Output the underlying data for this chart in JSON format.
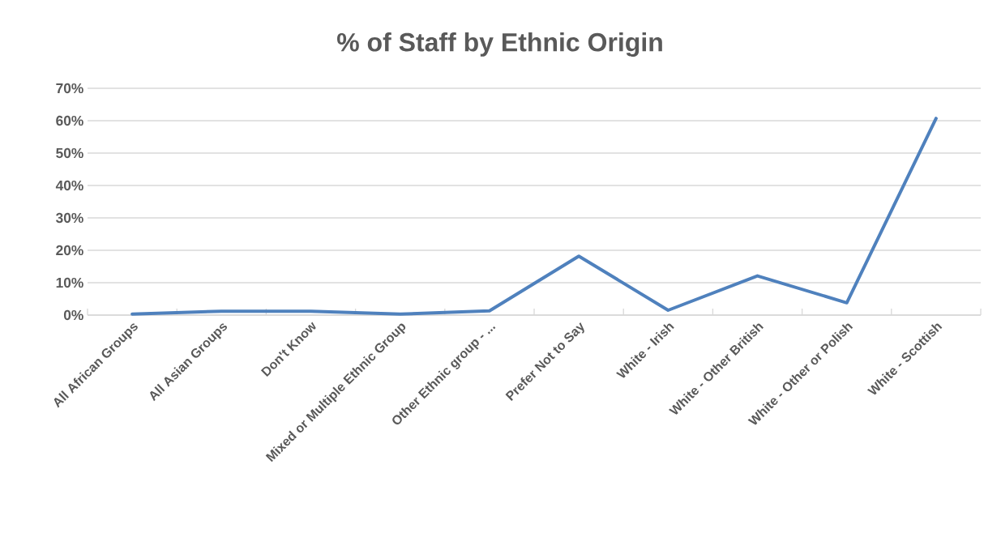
{
  "chart_data": {
    "type": "line",
    "title": "% of Staff by Ethnic Origin",
    "categories": [
      "All African Groups",
      "All Asian Groups",
      "Don't Know",
      "Mixed or Multiple Ethnic Group",
      "Other Ethnic group - ...",
      "Prefer Not to Say",
      "White - Irish",
      "White - Other British",
      "White - Other or Polish",
      "White - Scottish"
    ],
    "series": [
      {
        "color": "#4f81bd",
        "values": [
          0.3,
          1.2,
          1.2,
          0.3,
          1.3,
          18.2,
          1.5,
          12.1,
          3.8,
          60.7
        ]
      }
    ],
    "ylim": [
      0,
      70
    ],
    "yticks": [
      {
        "value": 0,
        "label": "0%"
      },
      {
        "value": 10,
        "label": "10%"
      },
      {
        "value": 20,
        "label": "20%"
      },
      {
        "value": 30,
        "label": "30%"
      },
      {
        "value": 40,
        "label": "40%"
      },
      {
        "value": 50,
        "label": "50%"
      },
      {
        "value": 60,
        "label": "60%"
      },
      {
        "value": 70,
        "label": "70%"
      }
    ],
    "grid": "y"
  }
}
